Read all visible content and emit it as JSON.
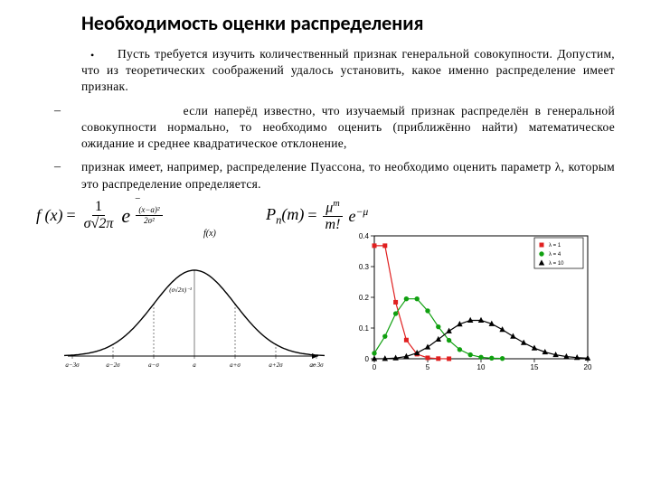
{
  "title": "Необходимость оценки распределения",
  "para1": "Пусть требуется изучить количественный признак генеральной совокупности. Допустим, что из теоретических соображений удалось установить, какое именно распределение имеет признак.",
  "para2_lead": "если наперёд известно, что изучаемый признак распределён в генеральной совокупности нормально, то необходимо оценить (приближённо найти) математическое ожидание и среднее квадратическое отклонение,",
  "para3": "признак имеет, например, распределение Пуассона, то необходимо оценить параметр λ, которым это распределение определяется.",
  "normal_label_top": "f(x)",
  "normal_label_peak": "(σ√2π)⁻¹",
  "normal_ticks": [
    "a−3σ",
    "a−2σ",
    "a−σ",
    "a",
    "a+σ",
    "a+2σ",
    "a+3σ"
  ],
  "normal_formula": {
    "lhs": "f (x)",
    "over_sqrt": "σ√2π",
    "exp_num": "(x−a)²",
    "exp_den": "2σ²"
  },
  "poisson_formula": {
    "lhs_P": "P",
    "lhs_sub": "n",
    "lhs_arg": "(m)",
    "mu": "μ",
    "m": "m",
    "fact": "m!",
    "exp": "−μ"
  },
  "poisson_chart": {
    "type": "line+marker",
    "xlim": [
      0,
      20
    ],
    "ylim": [
      0,
      0.4
    ],
    "xticks": [
      0,
      5,
      10,
      15,
      20
    ],
    "yticks": [
      0,
      0.1,
      0.2,
      0.3,
      0.4
    ],
    "background": "#ffffff",
    "grid": false,
    "series": [
      {
        "name": "λ=1",
        "label": "λ = 1",
        "color": "#e02020",
        "marker": "square",
        "x": [
          0,
          1,
          2,
          3,
          4,
          5,
          6,
          7
        ],
        "y": [
          0.368,
          0.368,
          0.184,
          0.061,
          0.015,
          0.003,
          0.0005,
          0.0001
        ]
      },
      {
        "name": "λ=4",
        "label": "λ = 4",
        "color": "#10a010",
        "marker": "circle",
        "x": [
          0,
          1,
          2,
          3,
          4,
          5,
          6,
          7,
          8,
          9,
          10,
          11,
          12
        ],
        "y": [
          0.018,
          0.073,
          0.147,
          0.195,
          0.195,
          0.156,
          0.104,
          0.06,
          0.03,
          0.013,
          0.005,
          0.002,
          0.001
        ]
      },
      {
        "name": "λ=10",
        "label": "λ = 10",
        "color": "#000000",
        "marker": "triangle",
        "x": [
          0,
          1,
          2,
          3,
          4,
          5,
          6,
          7,
          8,
          9,
          10,
          11,
          12,
          13,
          14,
          15,
          16,
          17,
          18,
          19,
          20
        ],
        "y": [
          5e-05,
          0.0005,
          0.0023,
          0.0076,
          0.0189,
          0.0378,
          0.0631,
          0.0901,
          0.1126,
          0.1251,
          0.1251,
          0.1137,
          0.0948,
          0.0729,
          0.0521,
          0.0347,
          0.0217,
          0.0128,
          0.0071,
          0.0037,
          0.0019
        ]
      }
    ],
    "legend_box": {
      "border": "#000000"
    }
  },
  "normal_chart": {
    "type": "line",
    "tick_positions": [
      -3,
      -2,
      -1,
      0,
      1,
      2,
      3
    ],
    "axis_color": "#000000",
    "curve_color": "#000000",
    "curve_width": 1.4,
    "dash_positions": [
      -2,
      -1,
      1,
      2
    ]
  }
}
